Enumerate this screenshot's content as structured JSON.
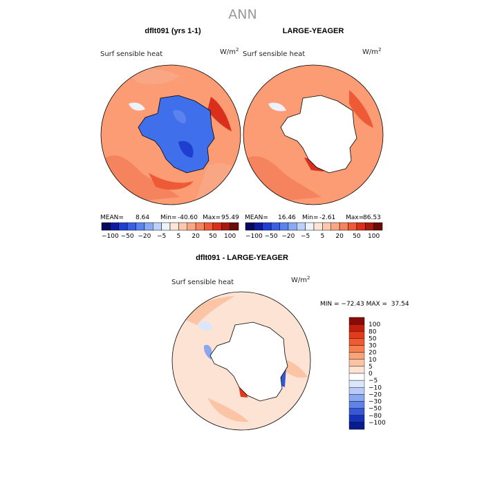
{
  "figure_title": "ANN",
  "chart_data": [
    {
      "type": "heatmap",
      "projection": "south polar stereographic",
      "title": "dflt091 (yrs 1-1)",
      "field_label": "Surf sensible heat",
      "units": "W/m",
      "units_exp": "2",
      "stats_text": {
        "mean_label": "MEAN=",
        "mean": "8.64",
        "min_label": "Min=",
        "min": "-40.60",
        "max_label": "Max=",
        "max": "95.49"
      },
      "colorbar": {
        "levels": [
          -100,
          -80,
          -50,
          -30,
          -20,
          -10,
          -5,
          0,
          5,
          10,
          20,
          30,
          50,
          80,
          100
        ],
        "tick_labels": [
          "−100",
          "−50",
          "−20",
          "−5",
          "5",
          "20",
          "50",
          "100"
        ],
        "colors": [
          "#08085e",
          "#0f1a9c",
          "#1e3fd0",
          "#3a5fe6",
          "#5b82ee",
          "#88a9f4",
          "#bcd0f8",
          "#eef2fc",
          "#fde6d8",
          "#fbc9ad",
          "#f9a684",
          "#f5835e",
          "#ee5a36",
          "#d92f1c",
          "#a81a0e",
          "#6b0a06"
        ]
      },
      "continent_fill": "#3f6fea",
      "ocean_fill": "#fb9c74"
    },
    {
      "type": "heatmap",
      "projection": "south polar stereographic",
      "title": "LARGE-YEAGER",
      "field_label": "Surf sensible heat",
      "units": "W/m",
      "units_exp": "2",
      "stats_text": {
        "mean_label": "MEAN=",
        "mean": "16.46",
        "min_label": "Min=",
        "min": "-2.61",
        "max_label": "Max=",
        "max": "86.53"
      },
      "colorbar": {
        "levels": [
          -100,
          -80,
          -50,
          -30,
          -20,
          -10,
          -5,
          0,
          5,
          10,
          20,
          30,
          50,
          80,
          100
        ],
        "tick_labels": [
          "−100",
          "−50",
          "−20",
          "−5",
          "5",
          "20",
          "50",
          "100"
        ],
        "colors": [
          "#08085e",
          "#0f1a9c",
          "#1e3fd0",
          "#3a5fe6",
          "#5b82ee",
          "#88a9f4",
          "#bcd0f8",
          "#eef2fc",
          "#fde6d8",
          "#fbc9ad",
          "#f9a684",
          "#f5835e",
          "#ee5a36",
          "#d92f1c",
          "#a81a0e",
          "#6b0a06"
        ]
      },
      "continent_fill": "#ffffff",
      "ocean_fill": "#fb9c74"
    },
    {
      "type": "heatmap",
      "projection": "south polar stereographic",
      "title": "dflt091 - LARGE-YEAGER",
      "field_label": "Surf sensible heat",
      "units": "W/m",
      "units_exp": "2",
      "minmax_text": "MIN = −72.43 MAX =  37.54",
      "colorbar": {
        "levels": [
          "100",
          "80",
          "50",
          "30",
          "20",
          "10",
          "5",
          "0",
          "−5",
          "−10",
          "−20",
          "−30",
          "−50",
          "−80",
          "−100"
        ],
        "colors_top_to_bottom": [
          "#8a0b06",
          "#c21d0d",
          "#e23a1c",
          "#f05a30",
          "#f6804f",
          "#f9a478",
          "#fbc4a5",
          "#fde3d3",
          "#ffffff",
          "#dce6fb",
          "#b9cbf6",
          "#8aa7f0",
          "#5f83e6",
          "#3658d8",
          "#1533b8",
          "#0a1a8f"
        ]
      },
      "continent_fill": "#ffffff",
      "ocean_fill": "#fde3d3"
    }
  ]
}
